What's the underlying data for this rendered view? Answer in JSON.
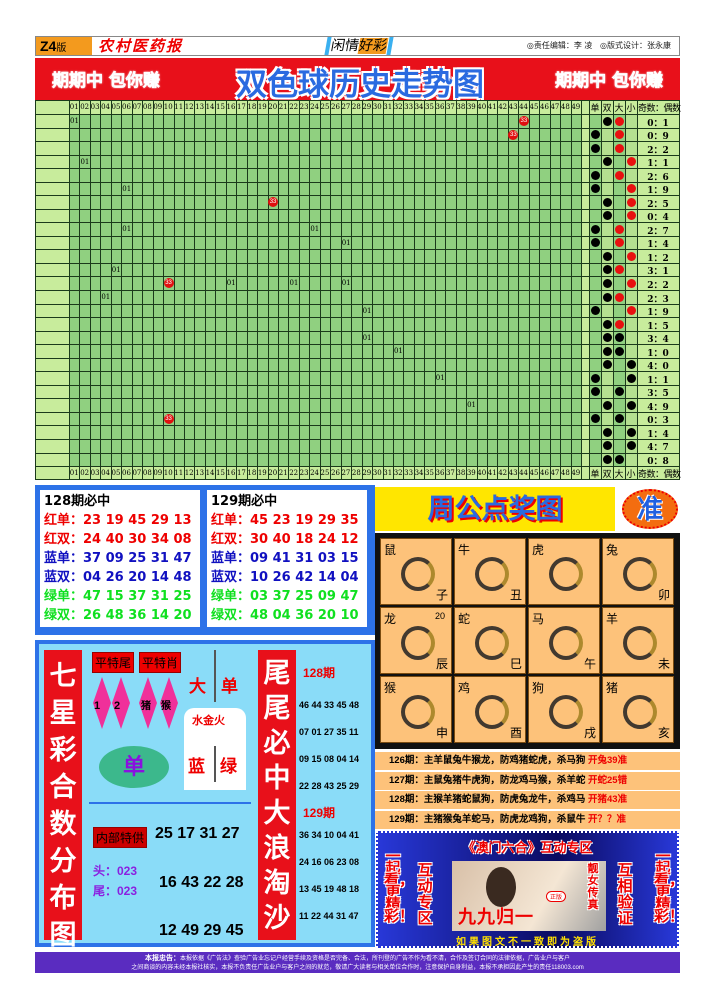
{
  "header": {
    "page": "Z4",
    "page_suffix": "版",
    "masthead": "农村医药报",
    "section_a": "闲情",
    "section_b": "好彩",
    "editor": "◎责任编辑：李 凌",
    "designer": "◎版式设计：张永康"
  },
  "banner": {
    "title": "双色球历史走势图",
    "left_slogan": "期期中 包你赚",
    "right_slogan": "期期中 包你赚"
  },
  "chart": {
    "numbers": [
      "01",
      "02",
      "03",
      "04",
      "05",
      "06",
      "07",
      "08",
      "09",
      "10",
      "11",
      "12",
      "13",
      "14",
      "15",
      "16",
      "17",
      "18",
      "19",
      "20",
      "21",
      "22",
      "23",
      "24",
      "25",
      "26",
      "27",
      "28",
      "29",
      "30",
      "31",
      "32",
      "33",
      "34",
      "35",
      "36",
      "37",
      "38",
      "39",
      "40",
      "41",
      "42",
      "43",
      "44",
      "45",
      "46",
      "47",
      "48",
      "49"
    ],
    "attr_headers": [
      "单",
      "双",
      "大",
      "小"
    ],
    "ratio_header": "奇数：偶数",
    "rows": [
      {
        "marks": [
          [
            1,
            "01"
          ],
          [
            44,
            "33"
          ]
        ],
        "dots": [
          "双",
          "大"
        ],
        "dot_color": "red",
        "ratio": "0：1"
      },
      {
        "marks": [
          [
            43,
            "33"
          ]
        ],
        "dots": [
          "单",
          "大"
        ],
        "dot_color": "red",
        "ratio": "0：9"
      },
      {
        "marks": [],
        "dots": [
          "单",
          "大"
        ],
        "dot_color": "red",
        "ratio": "2：2"
      },
      {
        "marks": [
          [
            2,
            "01"
          ]
        ],
        "dots": [
          "双",
          "小"
        ],
        "dot_color": "red",
        "ratio": "1：1"
      },
      {
        "marks": [],
        "dots": [
          "单",
          "大"
        ],
        "dot_color": "red",
        "ratio": "2：6"
      },
      {
        "marks": [
          [
            6,
            "01"
          ]
        ],
        "dots": [
          "单",
          "小"
        ],
        "dot_color": "red",
        "ratio": "1：9"
      },
      {
        "marks": [
          [
            20,
            "33"
          ]
        ],
        "dots": [
          "双",
          "小"
        ],
        "dot_color": "red",
        "ratio": "2：5"
      },
      {
        "marks": [],
        "dots": [
          "双",
          "小"
        ],
        "dot_color": "red",
        "ratio": "0：4"
      },
      {
        "marks": [
          [
            6,
            "01"
          ],
          [
            24,
            "01"
          ]
        ],
        "dots": [
          "单",
          "大"
        ],
        "dot_color": "red",
        "ratio": "2：7"
      },
      {
        "marks": [
          [
            27,
            "01"
          ]
        ],
        "dots": [
          "单",
          "大"
        ],
        "dot_color": "red",
        "ratio": "1：4"
      },
      {
        "marks": [],
        "dots": [
          "双",
          "小"
        ],
        "dot_color": "red",
        "ratio": "1：2"
      },
      {
        "marks": [
          [
            5,
            "01"
          ]
        ],
        "dots": [
          "双",
          "大"
        ],
        "dot_color": "red",
        "ratio": "3：1"
      },
      {
        "marks": [
          [
            10,
            "33"
          ],
          [
            16,
            "01"
          ],
          [
            22,
            "01"
          ],
          [
            27,
            "01"
          ]
        ],
        "dots": [
          "双",
          "小"
        ],
        "dot_color": "red",
        "ratio": "2：2"
      },
      {
        "marks": [
          [
            4,
            "01"
          ]
        ],
        "dots": [
          "双",
          "大"
        ],
        "dot_color": "red",
        "ratio": "2：3"
      },
      {
        "marks": [
          [
            29,
            "01"
          ]
        ],
        "dots": [
          "单",
          "小"
        ],
        "dot_color": "red",
        "ratio": "1：9"
      },
      {
        "marks": [],
        "dots": [
          "双",
          "大"
        ],
        "dot_color": "red",
        "ratio": "1：5"
      },
      {
        "marks": [
          [
            29,
            "01"
          ]
        ],
        "dots": [
          "双",
          "大"
        ],
        "dot_color": "black",
        "ratio": "3：4"
      },
      {
        "marks": [
          [
            32,
            "01"
          ]
        ],
        "dots": [
          "双",
          "大"
        ],
        "dot_color": "black",
        "ratio": "1：0"
      },
      {
        "marks": [],
        "dots": [
          "双",
          "小"
        ],
        "dot_color": "black",
        "ratio": "4：0"
      },
      {
        "marks": [
          [
            36,
            "01"
          ]
        ],
        "dots": [
          "单",
          "小"
        ],
        "dot_color": "black",
        "ratio": "1：1"
      },
      {
        "marks": [],
        "dots": [
          "单",
          "大"
        ],
        "dot_color": "black",
        "ratio": "3：5"
      },
      {
        "marks": [
          [
            39,
            "01"
          ]
        ],
        "dots": [
          "双",
          "小"
        ],
        "dot_color": "black",
        "ratio": "4：9"
      },
      {
        "marks": [
          [
            10,
            "33"
          ]
        ],
        "dots": [
          "单",
          "大"
        ],
        "dot_color": "black",
        "ratio": "0：3"
      },
      {
        "marks": [],
        "dots": [
          "双",
          "小"
        ],
        "dot_color": "black",
        "ratio": "1：4"
      },
      {
        "marks": [],
        "dots": [
          "双",
          "小"
        ],
        "dot_color": "black",
        "ratio": "4：7"
      },
      {
        "marks": [],
        "dots": [
          "双",
          "大"
        ],
        "dot_color": "black",
        "ratio": "0：8"
      }
    ]
  },
  "picks": [
    {
      "title": "128期必中",
      "lines": [
        [
          "红单：",
          "23 19 45 29 13",
          "r"
        ],
        [
          "红双：",
          "24 40 30 34 08",
          "r"
        ],
        [
          "蓝单：",
          "37 09 25 31 47",
          "b"
        ],
        [
          "蓝双：",
          "04 26 20 14 48",
          "b"
        ],
        [
          "绿单：",
          "47 15 37 31 25",
          "g"
        ],
        [
          "绿双：",
          "26 48 36 14 20",
          "g"
        ]
      ]
    },
    {
      "title": "129期必中",
      "lines": [
        [
          "红单：",
          "45 23 19 29 35",
          "r"
        ],
        [
          "红双：",
          "30 40 18 24 12",
          "r"
        ],
        [
          "蓝单：",
          "09 41 31 03 15",
          "b"
        ],
        [
          "蓝双：",
          "10 26 42 14 04",
          "b"
        ],
        [
          "绿单：",
          "03 37 25 09 47",
          "g"
        ],
        [
          "绿双：",
          "48 04 36 20 10",
          "g"
        ]
      ]
    }
  ],
  "qixing": {
    "left_title": "七星彩合数分布图",
    "tag1": "平特尾",
    "tag2": "平特肖",
    "d1": "1",
    "d2": "2",
    "d3": "猪",
    "d4": "猴",
    "da": "大",
    "dan": "单",
    "element": "水金火",
    "lan": "蓝",
    "lv": "绿",
    "oval": "单",
    "inner_tag": "内部特供",
    "inner_nums": "25 17 31 27",
    "head": "头：023",
    "tail": "尾：023",
    "nums2": "16 43 22 28",
    "nums3": "12 49 29 45",
    "mid_title": "尾尾必中大浪淘沙",
    "p128": "128期",
    "p128_rows": [
      "46 44 33 45 48",
      "07 01 27 35 11",
      "09 15 08 04 14",
      "22 28 43 25 29"
    ],
    "p129": "129期",
    "p129_rows": [
      "36 34 10 04 41",
      "24 16 06 23 08",
      "13 45 19 48 18",
      "11 22 44 31 47"
    ]
  },
  "zodiac": {
    "title": "周公点奖图",
    "badge": "准",
    "cells": [
      {
        "name": "鼠",
        "branch": "子"
      },
      {
        "name": "牛",
        "branch": "丑"
      },
      {
        "name": "虎",
        "branch": ""
      },
      {
        "name": "兔",
        "branch": "卯"
      },
      {
        "name": "龙",
        "branch": "辰",
        "num": "20"
      },
      {
        "name": "蛇",
        "branch": "巳"
      },
      {
        "name": "马",
        "branch": "午"
      },
      {
        "name": "羊",
        "branch": "未"
      },
      {
        "name": "猴",
        "branch": "申"
      },
      {
        "name": "鸡",
        "branch": "酉"
      },
      {
        "name": "狗",
        "branch": "戌"
      },
      {
        "name": "猪",
        "branch": "亥"
      }
    ]
  },
  "predictions": [
    {
      "text": "126期：主羊鼠兔牛猴龙，防鸡猪蛇虎，杀马狗",
      "result": "开兔39准"
    },
    {
      "text": "127期：主鼠兔猪牛虎狗，防龙鸡马猴，杀羊蛇",
      "result": "开蛇25错"
    },
    {
      "text": "128期：主猴羊猪蛇鼠狗，防虎兔龙牛，杀鸡马",
      "result": "开猪43准"
    },
    {
      "text": "129期：主猪猴兔羊蛇马，防虎龙鸡狗，杀鼠牛",
      "result": "开？？准"
    }
  ],
  "ad": {
    "title": "《澳门六合》互动专区",
    "left1": "一起看，更精彩！",
    "left2": "互动专区",
    "right1": "互相验证",
    "right2": "一起看，更精彩！",
    "photo_text": "靓女传真",
    "brand": "九九归一",
    "tag": "正版",
    "bottom": "如果图文不一致即为盗版"
  },
  "footer": {
    "label": "本报忠告：",
    "line1": "本报依据《广告法》查验广告业忘记户经营手续及资格是否完备、合法，所刊登的广告不作为看不清，合作及签订合同的法律依据，广告业户与客户",
    "line2": "之间商谈的内容未经本报社核实，本报不负责任广告业户与客户之间的就范，敬请广大读者与相关单位合作时，注意保护自身利益，本报不承担因此产生的责任118003.com"
  }
}
